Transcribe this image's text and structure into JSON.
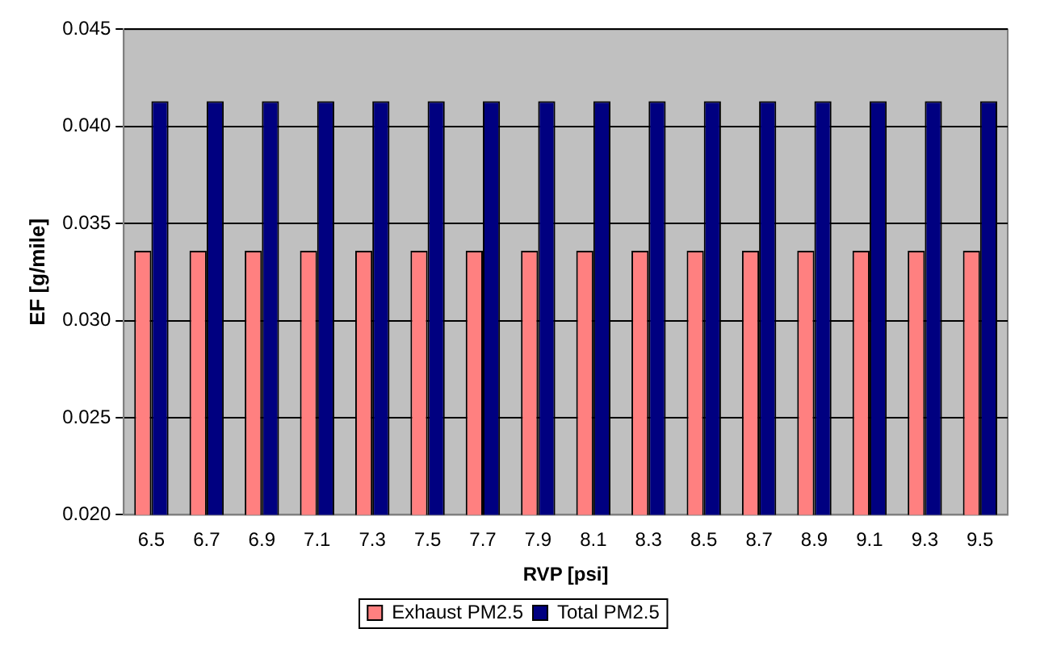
{
  "chart_data": {
    "type": "bar",
    "xlabel": "RVP [psi]",
    "ylabel": "EF [g/mile]",
    "categories": [
      "6.5",
      "6.7",
      "6.9",
      "7.1",
      "7.3",
      "7.5",
      "7.7",
      "7.9",
      "8.1",
      "8.3",
      "8.5",
      "8.7",
      "8.9",
      "9.1",
      "9.3",
      "9.5"
    ],
    "series": [
      {
        "name": "Exhaust PM2.5",
        "color": "#ff8080",
        "values": [
          0.0336,
          0.0336,
          0.0336,
          0.0336,
          0.0336,
          0.0336,
          0.0336,
          0.0336,
          0.0336,
          0.0336,
          0.0336,
          0.0336,
          0.0336,
          0.0336,
          0.0336,
          0.0336
        ]
      },
      {
        "name": "Total PM2.5",
        "color": "#000080",
        "values": [
          0.0413,
          0.0413,
          0.0413,
          0.0413,
          0.0413,
          0.0413,
          0.0413,
          0.0413,
          0.0413,
          0.0413,
          0.0413,
          0.0413,
          0.0413,
          0.0413,
          0.0413,
          0.0413
        ]
      }
    ],
    "ylim": [
      0.02,
      0.045
    ],
    "yticks": [
      {
        "value": 0.02,
        "label": "0.020"
      },
      {
        "value": 0.025,
        "label": "0.025"
      },
      {
        "value": 0.03,
        "label": "0.030"
      },
      {
        "value": 0.035,
        "label": "0.035"
      },
      {
        "value": 0.04,
        "label": "0.040"
      },
      {
        "value": 0.045,
        "label": "0.045"
      }
    ],
    "grid": "y",
    "legend": "bottom"
  }
}
